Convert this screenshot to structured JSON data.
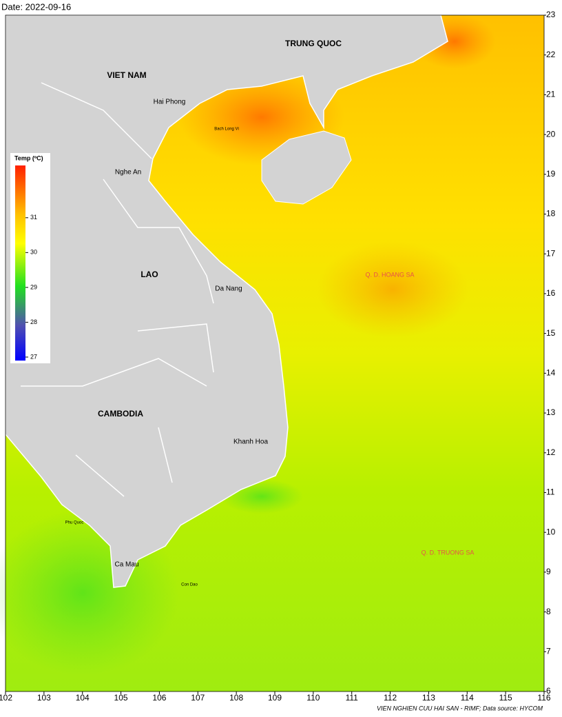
{
  "header": {
    "date": "Date: 2022-09-16"
  },
  "map": {
    "xlim": [
      102,
      116
    ],
    "ylim": [
      6,
      23
    ],
    "xticks": [
      102,
      103,
      104,
      105,
      106,
      107,
      108,
      109,
      110,
      111,
      112,
      113,
      114,
      115,
      116
    ],
    "yticks": [
      6,
      7,
      8,
      9,
      10,
      11,
      12,
      13,
      14,
      15,
      16,
      17,
      18,
      19,
      20,
      21,
      22,
      23
    ]
  },
  "places": {
    "countries": [
      "VIET NAM",
      "TRUNG QUOC",
      "LAO",
      "CAMBODIA"
    ],
    "provinces": [
      "Hai Phong",
      "Nghe An",
      "Da Nang",
      "Khanh Hoa",
      "Ca Mau"
    ],
    "islands": [
      "Bach Long Vi",
      "Phu Quoc",
      "Con Dao"
    ],
    "archipelagos": [
      "Q. D. HOANG SA",
      "Q. D. TRUONG SA"
    ]
  },
  "legend": {
    "title": "Temp (ºC)",
    "lim": [
      26.9,
      32.5
    ],
    "ticks": [
      27,
      28,
      29,
      30,
      31
    ]
  },
  "credit": "VIEN NGHIEN CUU HAI SAN - RIMF; Data source: HYCOM"
}
